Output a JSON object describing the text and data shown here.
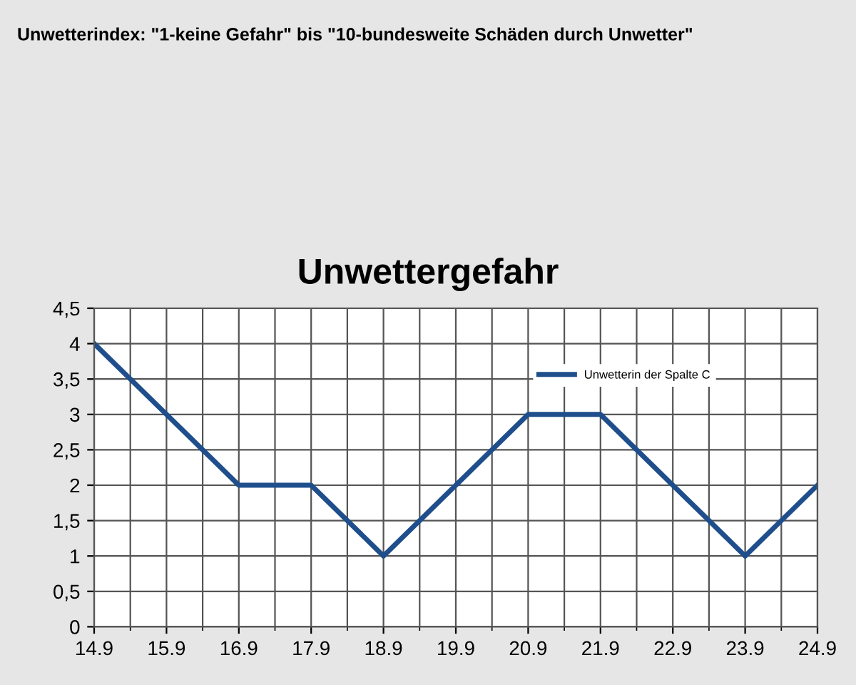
{
  "chart_data": {
    "type": "line",
    "title": "Unwettergefahr",
    "subtitle": "Unwetterindex: \"1-keine Gefahr\" bis \"10-bundesweite Schäden durch Unwetter\"",
    "categories": [
      "14.9",
      "15.9",
      "16.9",
      "17.9",
      "18.9",
      "19.9",
      "20.9",
      "21.9",
      "22.9",
      "23.9",
      "24.9"
    ],
    "series": [
      {
        "name": "Unwetterin der Spalte C",
        "color": "#1f4e8c",
        "values": [
          4,
          3,
          2,
          2,
          1,
          2,
          3,
          3,
          2,
          1,
          2
        ]
      }
    ],
    "ylim": [
      0,
      4.5
    ],
    "yticks": [
      0,
      {
        "value": 0.5,
        "label": "0,5"
      },
      1,
      {
        "value": 1.5,
        "label": "1,5"
      },
      2,
      {
        "value": 2.5,
        "label": "2,5"
      },
      3,
      {
        "value": 3.5,
        "label": "3,5"
      },
      4,
      {
        "value": 4.5,
        "label": "4,5"
      }
    ],
    "grid": true,
    "legend": "top",
    "marker": "none",
    "line_style": "solid"
  }
}
